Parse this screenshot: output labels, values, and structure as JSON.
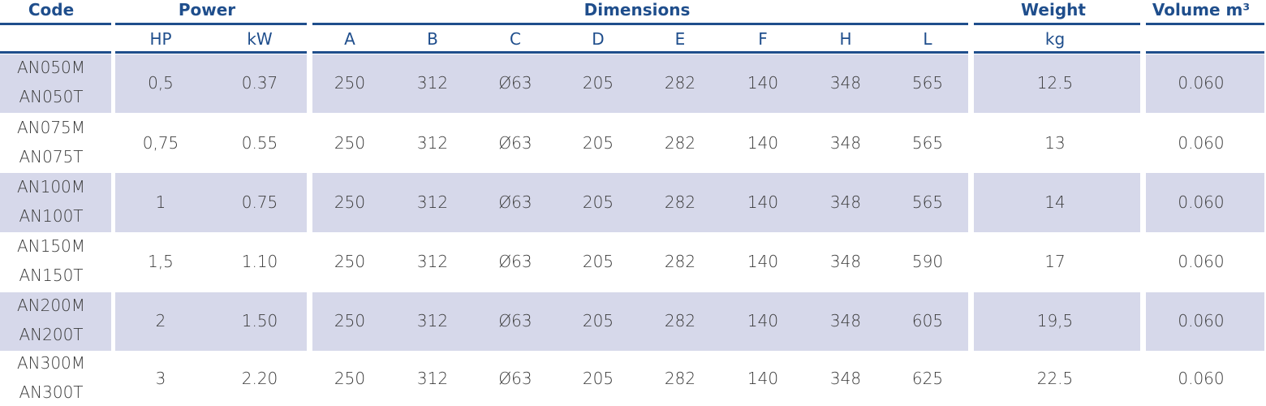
{
  "header": {
    "groups": [
      "Code",
      "Power",
      "Dimensions",
      "Weight",
      "Volume m³"
    ],
    "units": [
      "HP",
      "kW",
      "A",
      "B",
      "C",
      "D",
      "E",
      "F",
      "H",
      "L",
      "kg"
    ]
  },
  "table": {
    "rows": [
      {
        "code": [
          "AN050M",
          "AN050T"
        ],
        "cells": [
          "0,5",
          "0.37",
          "250",
          "312",
          "Ø63",
          "205",
          "282",
          "140",
          "348",
          "565",
          "12.5",
          "0.060"
        ]
      },
      {
        "code": [
          "AN075M",
          "AN075T"
        ],
        "cells": [
          "0,75",
          "0.55",
          "250",
          "312",
          "Ø63",
          "205",
          "282",
          "140",
          "348",
          "565",
          "13",
          "0.060"
        ]
      },
      {
        "code": [
          "AN100M",
          "AN100T"
        ],
        "cells": [
          "1",
          "0.75",
          "250",
          "312",
          "Ø63",
          "205",
          "282",
          "140",
          "348",
          "565",
          "14",
          "0.060"
        ]
      },
      {
        "code": [
          "AN150M",
          "AN150T"
        ],
        "cells": [
          "1,5",
          "1.10",
          "250",
          "312",
          "Ø63",
          "205",
          "282",
          "140",
          "348",
          "590",
          "17",
          "0.060"
        ]
      },
      {
        "code": [
          "AN200M",
          "AN200T"
        ],
        "cells": [
          "2",
          "1.50",
          "250",
          "312",
          "Ø63",
          "205",
          "282",
          "140",
          "348",
          "605",
          "19,5",
          "0.060"
        ]
      },
      {
        "code": [
          "AN300M",
          "AN300T"
        ],
        "cells": [
          "3",
          "2.20",
          "250",
          "312",
          "Ø63",
          "205",
          "282",
          "140",
          "348",
          "625",
          "22.5",
          "0.060"
        ]
      }
    ]
  }
}
